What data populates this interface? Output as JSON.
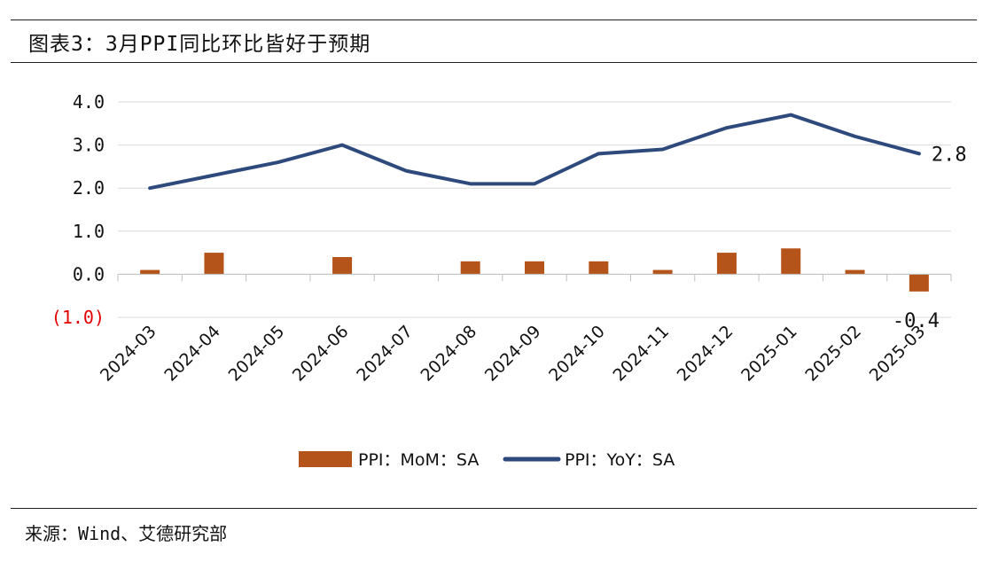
{
  "header": {
    "title": "图表3：3月PPI同比环比皆好于预期"
  },
  "footer": {
    "source": "来源：Wind、艾德研究部"
  },
  "chart_data": {
    "type": "bar+line",
    "categories": [
      "2024-03",
      "2024-04",
      "2024-05",
      "2024-06",
      "2024-07",
      "2024-08",
      "2024-09",
      "2024-10",
      "2024-11",
      "2024-12",
      "2025-01",
      "2025-02",
      "2025-03"
    ],
    "series": [
      {
        "name": "PPI：MoM：SA",
        "type": "bar",
        "color": "#b5541a",
        "values": [
          0.1,
          0.5,
          0.0,
          0.4,
          0.0,
          0.3,
          0.3,
          0.3,
          0.1,
          0.5,
          0.6,
          0.1,
          -0.4
        ]
      },
      {
        "name": "PPI：YoY：SA",
        "type": "line",
        "color": "#2e4a7d",
        "values": [
          2.0,
          2.3,
          2.6,
          3.0,
          2.4,
          2.1,
          2.1,
          2.8,
          2.9,
          3.4,
          3.7,
          3.2,
          2.8
        ]
      }
    ],
    "yticks": [
      {
        "value": 4.0,
        "label": "4.0"
      },
      {
        "value": 3.0,
        "label": "3.0"
      },
      {
        "value": 2.0,
        "label": "2.0"
      },
      {
        "value": 1.0,
        "label": "1.0"
      },
      {
        "value": 0.0,
        "label": "0.0"
      },
      {
        "value": -1.0,
        "label": "(1.0)",
        "color": "#e00000"
      }
    ],
    "ylim": [
      -1.0,
      4.0
    ],
    "data_labels": [
      {
        "series": "PPI：YoY：SA",
        "index": 12,
        "text": "2.8"
      },
      {
        "series": "PPI：MoM：SA",
        "index": 12,
        "text": "-0.4"
      }
    ],
    "grid": true,
    "legend_position": "bottom"
  }
}
